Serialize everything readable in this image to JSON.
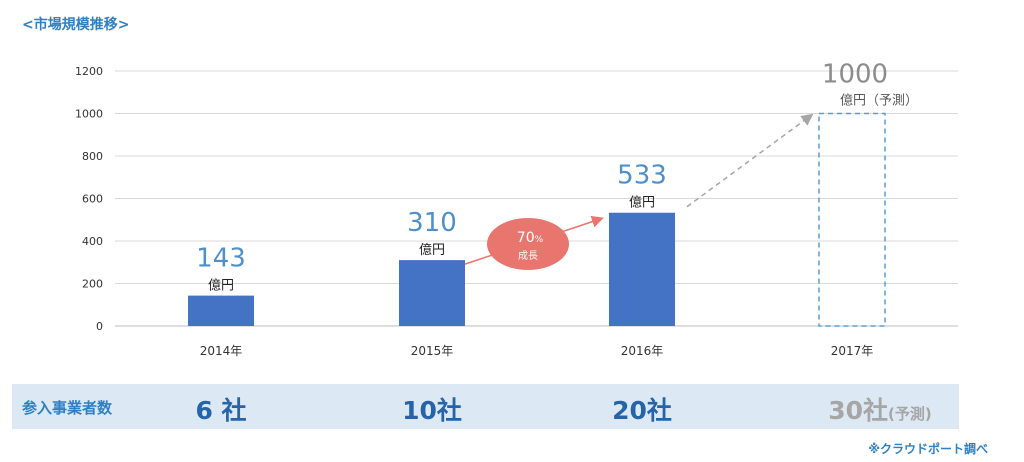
{
  "title": "<市場規模推移>",
  "chart_data": {
    "type": "bar",
    "categories": [
      "2014年",
      "2015年",
      "2016年",
      "2017年"
    ],
    "values": [
      143,
      310,
      533,
      1000
    ],
    "forecast": [
      false,
      false,
      false,
      true
    ],
    "value_unit": "億円",
    "forecast_unit": "億円（予測）",
    "ylim": [
      0,
      1200
    ],
    "yticks": [
      0,
      200,
      400,
      600,
      800,
      1000,
      1200
    ],
    "grid": true,
    "annotations": {
      "growth_pct": "70",
      "growth_pct_sign": "%",
      "growth_text": "成長"
    },
    "colors": {
      "bar": "#4472c4",
      "forecast_outline": "#5b9bd5",
      "growth_bubble": "#e8766e",
      "growth_arrow": "#e8766e",
      "forecast_arrow": "#a6a6a6"
    }
  },
  "participants": {
    "label": "参入事業者数",
    "values": [
      "6 社",
      "10社",
      "20社",
      "30社"
    ],
    "forecast_suffix": "(予測)"
  },
  "source": "※クラウドポート調べ"
}
